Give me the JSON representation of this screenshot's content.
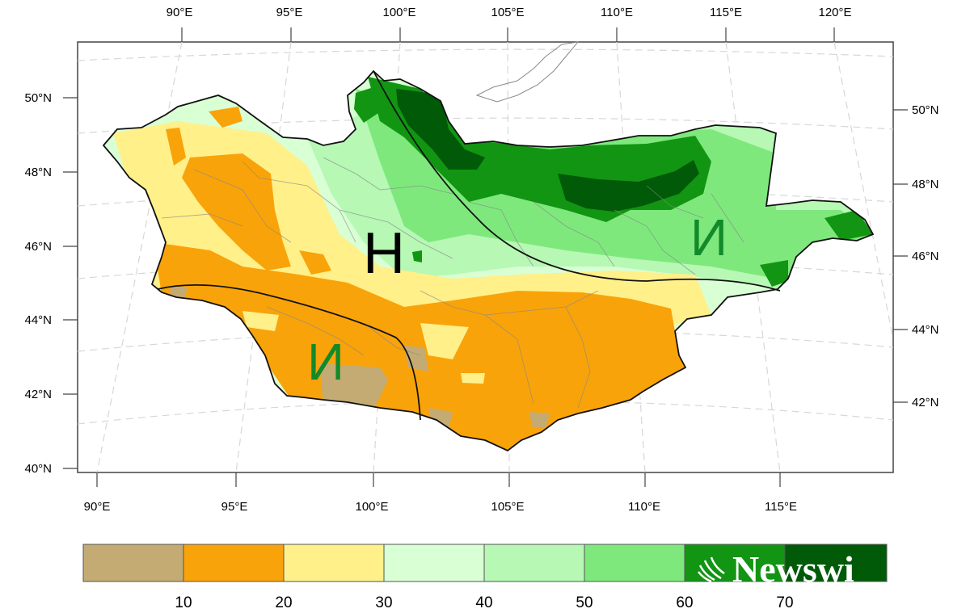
{
  "map": {
    "lon_top_labels": [
      "90°E",
      "95°E",
      "100°E",
      "105°E",
      "110°E",
      "115°E",
      "120°E"
    ],
    "lon_bottom_labels": [
      "90°E",
      "95°E",
      "100°E",
      "105°E",
      "110°E",
      "115°E"
    ],
    "lat_left_labels": [
      "50°N",
      "48°N",
      "46°N",
      "44°N",
      "42°N",
      "40°N"
    ],
    "lat_right_labels": [
      "50°N",
      "48°N",
      "46°N",
      "44°N",
      "42°N"
    ],
    "region_labels": {
      "center": "Н",
      "east": "И",
      "southwest": "И"
    }
  },
  "legend": {
    "tick_labels": [
      "10",
      "20",
      "30",
      "40",
      "50",
      "60",
      "70"
    ],
    "colors": [
      "#c4ab74",
      "#f9a30a",
      "#fff08a",
      "#d9ffd4",
      "#b6f8b4",
      "#7ee87d",
      "#129512",
      "#005a08"
    ]
  },
  "watermark": {
    "text": "Newswi"
  }
}
